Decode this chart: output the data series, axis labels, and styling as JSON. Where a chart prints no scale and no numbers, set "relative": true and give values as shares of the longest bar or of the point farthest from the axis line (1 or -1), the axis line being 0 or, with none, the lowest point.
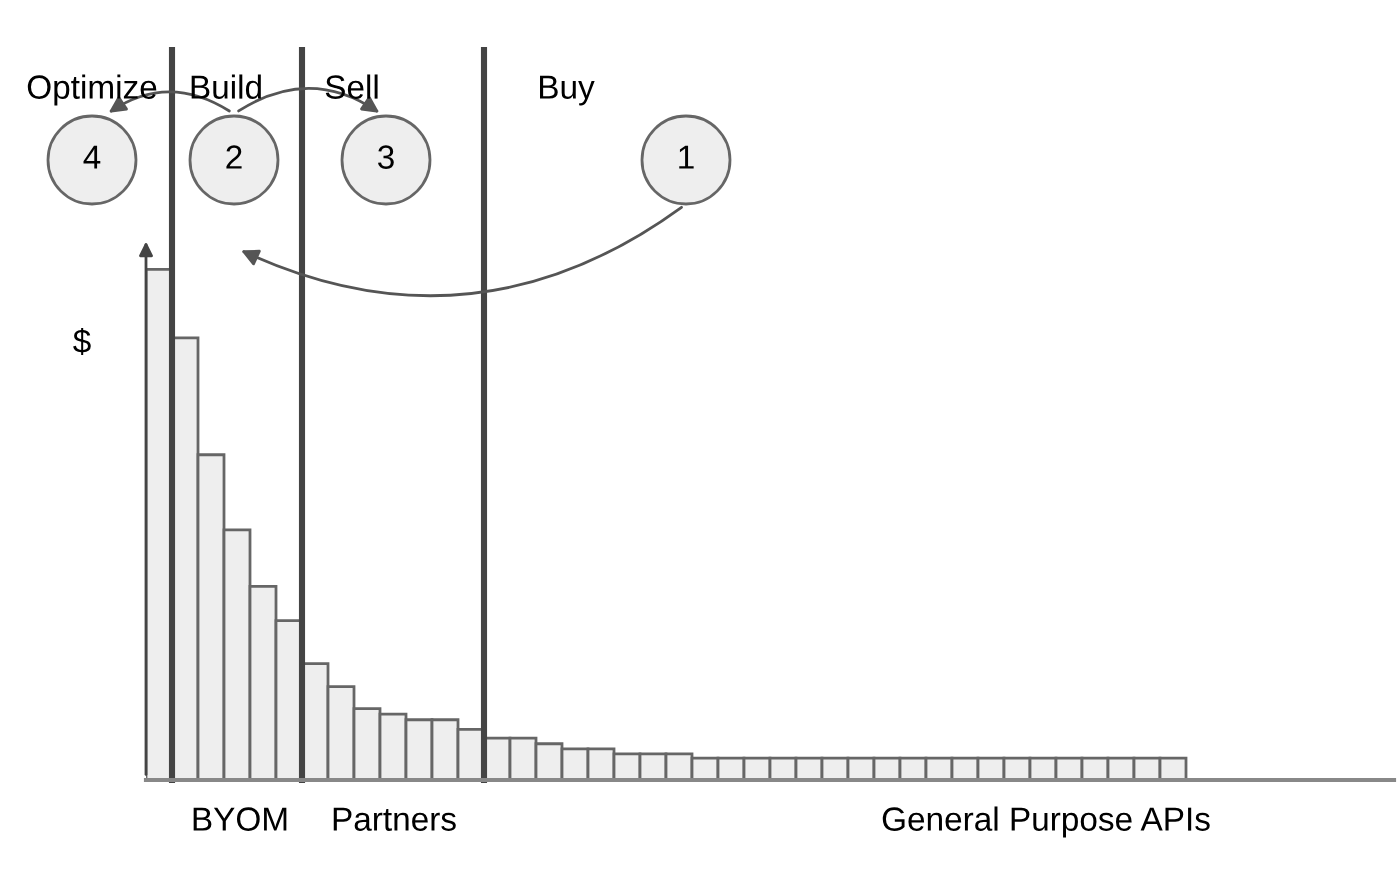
{
  "chart_data": {
    "type": "bar",
    "relative": true,
    "ylabel": "$",
    "color": "#eeeeee",
    "categories": [
      null,
      null,
      null,
      null,
      null,
      null,
      null,
      null,
      null,
      null,
      null,
      null,
      null,
      null,
      null,
      null,
      null,
      null,
      null,
      null,
      null,
      null,
      null,
      null,
      null,
      null,
      null,
      null,
      null,
      null,
      null,
      null,
      null,
      null,
      null,
      null,
      null,
      null,
      null,
      null
    ],
    "values": [
      1,
      0.866,
      0.637,
      0.49,
      0.379,
      0.312,
      0.228,
      0.183,
      0.14,
      0.129,
      0.118,
      0.118,
      0.099,
      0.082,
      0.082,
      0.071,
      0.061,
      0.061,
      0.051,
      0.051,
      0.051,
      0.043,
      0.043,
      0.043,
      0.043,
      0.043,
      0.043,
      0.043,
      0.043,
      0.043,
      0.043,
      0.043,
      0.043,
      0.043,
      0.043,
      0.043,
      0.043,
      0.043,
      0.043,
      0.043
    ],
    "annotations": [
      "Optimize",
      "Build",
      "Sell",
      "Buy",
      "4",
      "2",
      "3",
      "1",
      "BYOM",
      "Partners",
      "General Purpose APIs"
    ],
    "grid": false
  }
}
